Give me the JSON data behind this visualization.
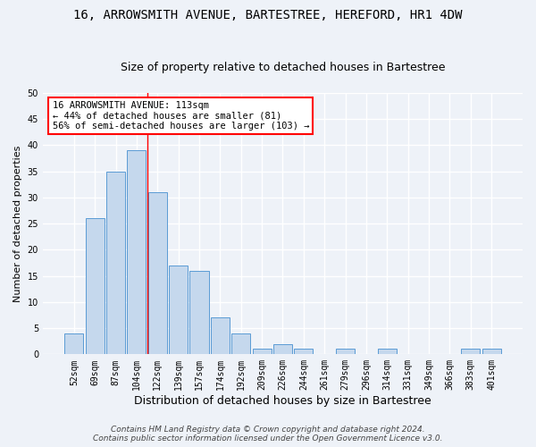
{
  "title": "16, ARROWSMITH AVENUE, BARTESTREE, HEREFORD, HR1 4DW",
  "subtitle": "Size of property relative to detached houses in Bartestree",
  "xlabel": "Distribution of detached houses by size in Bartestree",
  "ylabel": "Number of detached properties",
  "categories": [
    "52sqm",
    "69sqm",
    "87sqm",
    "104sqm",
    "122sqm",
    "139sqm",
    "157sqm",
    "174sqm",
    "192sqm",
    "209sqm",
    "226sqm",
    "244sqm",
    "261sqm",
    "279sqm",
    "296sqm",
    "314sqm",
    "331sqm",
    "349sqm",
    "366sqm",
    "383sqm",
    "401sqm"
  ],
  "values": [
    4,
    26,
    35,
    39,
    31,
    17,
    16,
    7,
    4,
    1,
    2,
    1,
    0,
    1,
    0,
    1,
    0,
    0,
    0,
    1,
    1
  ],
  "bar_color": "#c5d8ed",
  "bar_edge_color": "#5b9bd5",
  "red_line_x": 3.5,
  "annotation_text": "16 ARROWSMITH AVENUE: 113sqm\n← 44% of detached houses are smaller (81)\n56% of semi-detached houses are larger (103) →",
  "annotation_box_color": "white",
  "annotation_box_edge_color": "red",
  "ylim": [
    0,
    50
  ],
  "yticks": [
    0,
    5,
    10,
    15,
    20,
    25,
    30,
    35,
    40,
    45,
    50
  ],
  "background_color": "#eef2f8",
  "grid_color": "white",
  "footer_line1": "Contains HM Land Registry data © Crown copyright and database right 2024.",
  "footer_line2": "Contains public sector information licensed under the Open Government Licence v3.0.",
  "title_fontsize": 10,
  "subtitle_fontsize": 9,
  "xlabel_fontsize": 9,
  "ylabel_fontsize": 8,
  "tick_fontsize": 7,
  "annotation_fontsize": 7.5,
  "footer_fontsize": 6.5
}
